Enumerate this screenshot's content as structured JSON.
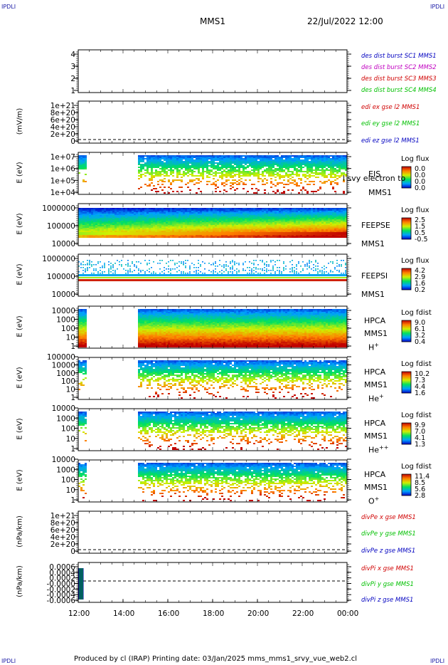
{
  "header": {
    "corner_left": "IPDLI",
    "corner_right": "IPDLI",
    "spacecraft": "MMS1",
    "datetime": "22/Jul/2022 12:00"
  },
  "footer": {
    "corner_left": "IPDLI",
    "corner_right": "IPDLI",
    "text": "Produced by cl (IRAP)   Printing date: 03/Jan/2025   mms_mms1_srvy_vue_web2.cl"
  },
  "chart_data": [
    {
      "id": "p1",
      "type": "line",
      "ylabel": "",
      "ticks": [
        "4",
        "3",
        "2",
        "1"
      ],
      "legend": [
        {
          "text": "des dist burst SC1 MMS1",
          "color": "#0000c0"
        },
        {
          "text": "des dist burst SC2 MMS2",
          "color": "#c000c0"
        },
        {
          "text": "des dist burst SC3 MMS3",
          "color": "#d00000"
        },
        {
          "text": "des dist burst SC4 MMS4",
          "color": "#00c000"
        }
      ]
    },
    {
      "id": "p2",
      "type": "line",
      "ylabel": "(mV/m)",
      "ticks": [
        "1e+21",
        "8e+20",
        "6e+20",
        "4e+20",
        "2e+20",
        "0"
      ],
      "legend": [
        {
          "text": "edi ex gse l2 MMS1",
          "color": "#d00000"
        },
        {
          "text": "edi ey gse l2 MMS1",
          "color": "#00c000"
        },
        {
          "text": "edi ez gse l2 MMS1",
          "color": "#0000c0"
        }
      ]
    },
    {
      "id": "p3",
      "type": "heatmap",
      "ylabel": "E (eV)",
      "ticks": [
        "1e+07",
        "1e+06",
        "1e+05",
        "1e+04"
      ],
      "ylim": [
        10000,
        10000000
      ],
      "labels": [
        "EIS",
        "MMS1"
      ],
      "overlay": "l svy electron to",
      "cbar_title": "Log flux",
      "cbar_values": [
        "0.0",
        "0.0",
        "0.0",
        "0.0"
      ]
    },
    {
      "id": "p4",
      "type": "heatmap",
      "ylabel": "E (eV)",
      "ticks": [
        "1000000",
        "100000",
        "10000"
      ],
      "ylim": [
        10000,
        1000000
      ],
      "labels": [
        "FEEPSE",
        "MMS1"
      ],
      "cbar_title": "Log flux",
      "cbar_values": [
        "2.5",
        "1.5",
        "0.5",
        "-0.5"
      ]
    },
    {
      "id": "p5",
      "type": "heatmap",
      "ylabel": "E (eV)",
      "ticks": [
        "1000000",
        "100000",
        "10000"
      ],
      "ylim": [
        10000,
        1000000
      ],
      "labels": [
        "FEEPSI",
        "MMS1"
      ],
      "cbar_title": "Log flux",
      "cbar_values": [
        "4.2",
        "2.9",
        "1.6",
        "0.2"
      ]
    },
    {
      "id": "p6",
      "type": "heatmap",
      "ylabel": "E (eV)",
      "ticks": [
        "10000",
        "1000",
        "100",
        "10",
        "1"
      ],
      "ylim": [
        1,
        40000
      ],
      "labels": [
        "HPCA",
        "MMS1"
      ],
      "species": "H",
      "species_sup": "+",
      "cbar_title": "Log fdist",
      "cbar_values": [
        "9.0",
        "6.1",
        "3.2",
        "0.4"
      ]
    },
    {
      "id": "p7",
      "type": "heatmap",
      "ylabel": "E (eV)",
      "ticks": [
        "100000",
        "10000",
        "1000",
        "100",
        "10",
        "1"
      ],
      "ylim": [
        1,
        100000
      ],
      "labels": [
        "HPCA",
        "MMS1"
      ],
      "species": "He",
      "species_sup": "+",
      "cbar_title": "Log fdist",
      "cbar_values": [
        "10.2",
        "7.3",
        "4.4",
        "1.6"
      ]
    },
    {
      "id": "p8",
      "type": "heatmap",
      "ylabel": "E (eV)",
      "ticks": [
        "10000",
        "1000",
        "100",
        "10",
        "1"
      ],
      "ylim": [
        1,
        40000
      ],
      "labels": [
        "HPCA",
        "MMS1"
      ],
      "species": "He",
      "species_sup": "++",
      "cbar_title": "Log fdist",
      "cbar_values": [
        "9.9",
        "7.0",
        "4.1",
        "1.3"
      ]
    },
    {
      "id": "p9",
      "type": "heatmap",
      "ylabel": "E (eV)",
      "ticks": [
        "10000",
        "1000",
        "100",
        "10",
        "1"
      ],
      "ylim": [
        1,
        40000
      ],
      "labels": [
        "HPCA",
        "MMS1"
      ],
      "species": "O",
      "species_sup": "+",
      "cbar_title": "Log fdist",
      "cbar_values": [
        "11.4",
        "8.5",
        "5.6",
        "2.8"
      ]
    },
    {
      "id": "p10",
      "type": "line",
      "ylabel": "(nPa/km)",
      "ticks": [
        "1e+21",
        "8e+20",
        "6e+20",
        "4e+20",
        "2e+20",
        "0"
      ],
      "legend": [
        {
          "text": "divPe x gse MMS1",
          "color": "#d00000"
        },
        {
          "text": "divPe y gse MMS1",
          "color": "#00c000"
        },
        {
          "text": "divPe z gse MMS1",
          "color": "#0000c0"
        }
      ]
    },
    {
      "id": "p11",
      "type": "line",
      "ylabel": "(nPa/km)",
      "ticks": [
        "0.0006",
        "0.0004",
        "0.0002",
        "-0.0000",
        "-0.0002",
        "-0.0004",
        "-0.0006"
      ],
      "legend": [
        {
          "text": "divPi x gse MMS1",
          "color": "#d00000"
        },
        {
          "text": "divPi y gse MMS1",
          "color": "#00c000"
        },
        {
          "text": "divPi z gse MMS1",
          "color": "#0000c0"
        }
      ]
    }
  ],
  "x_axis": {
    "ticks": [
      "12:00",
      "14:00",
      "16:00",
      "18:00",
      "20:00",
      "22:00",
      "00:00"
    ]
  }
}
